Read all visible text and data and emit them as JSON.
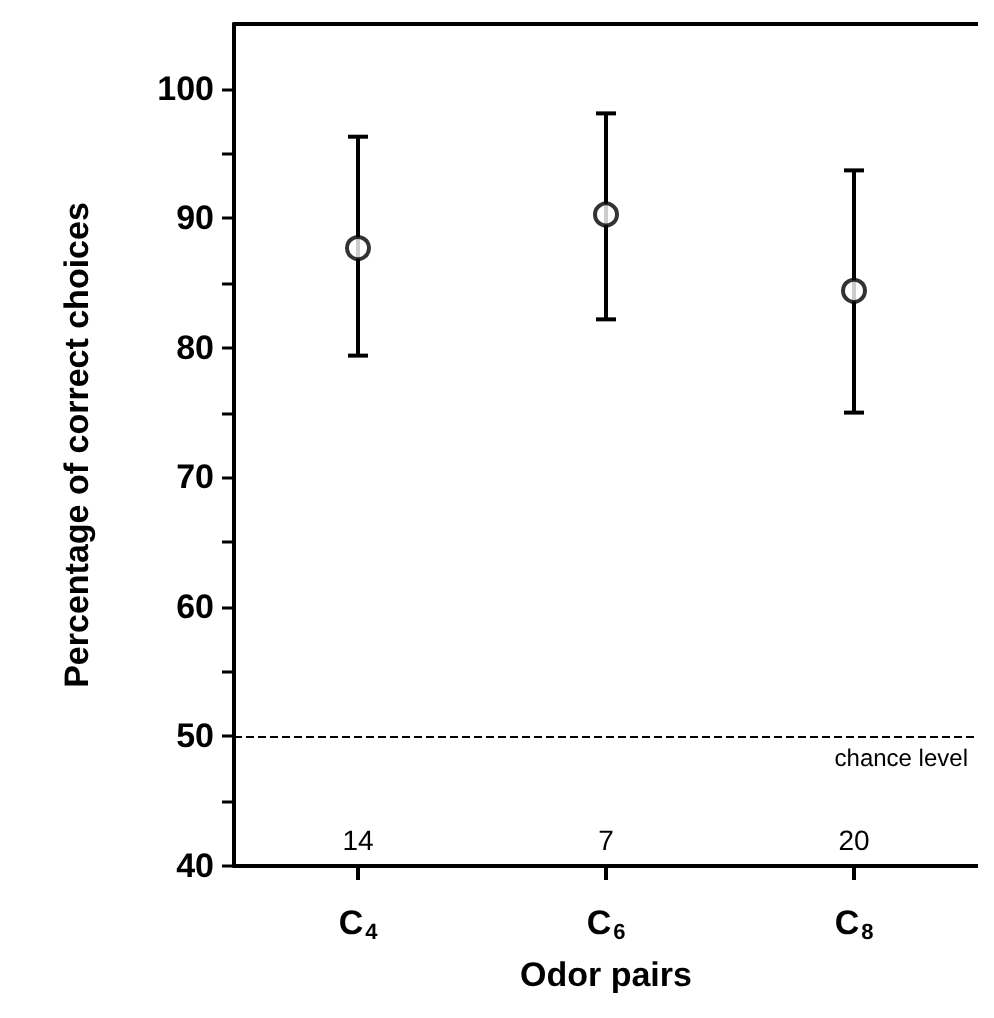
{
  "chart_data": {
    "type": "scatter",
    "xlabel": "Odor pairs",
    "ylabel": "Percentage of correct choices",
    "categories": [
      "C$_{4}$",
      "C$_{6}$",
      "C$_{8}$"
    ],
    "series": [
      {
        "color": "#000000",
        "values": [
          87.7,
          90.3,
          84.4
        ],
        "errors": [
          [
            79.4,
            96.3
          ],
          [
            82.2,
            98.1
          ],
          [
            75.0,
            93.7
          ]
        ]
      }
    ],
    "marker": "circle",
    "grid": false,
    "ylim": [
      40,
      105
    ],
    "yticks": [
      40,
      {
        "value": 45,
        "label": null
      },
      50,
      {
        "value": 55,
        "label": null
      },
      60,
      {
        "value": 65,
        "label": null
      },
      70,
      {
        "value": 75,
        "label": null
      },
      80,
      {
        "value": 85,
        "label": null
      },
      90,
      {
        "value": 95,
        "label": null
      },
      100
    ],
    "ref_lines": [
      {
        "axis": "y",
        "value": 50,
        "label": "chance level",
        "line_style": "dashed",
        "color": "#000000"
      }
    ],
    "annotations": [
      "14",
      "7",
      "20"
    ]
  }
}
